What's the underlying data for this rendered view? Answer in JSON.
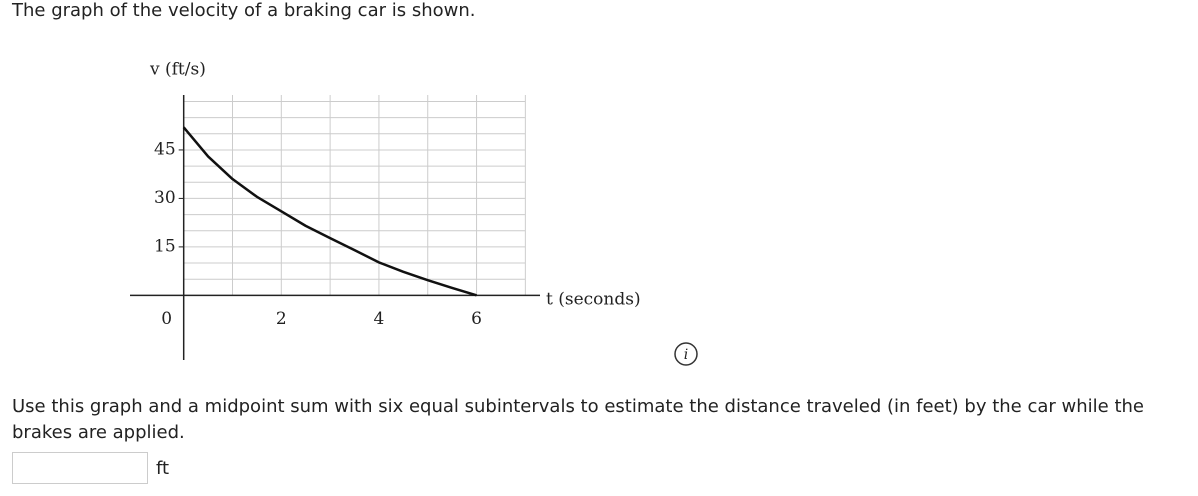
{
  "intro": "The graph of the velocity of a braking car is shown.",
  "question": "Use this graph and a midpoint sum with six equal subintervals to estimate the distance traveled (in feet) by the car while the brakes are applied.",
  "answer_unit": "ft",
  "chart_data": {
    "type": "line",
    "y_label": "v (ft/s)",
    "x_label": "t (seconds)",
    "x": [
      0,
      0.5,
      1,
      1.5,
      2,
      2.5,
      3,
      3.5,
      4,
      4.5,
      5,
      5.5,
      6
    ],
    "series": [
      {
        "color": "#111111",
        "values": [
          52,
          43,
          36,
          30.5,
          26,
          21.5,
          17.7,
          14,
          10.2,
          7.3,
          4.7,
          2.3,
          0
        ]
      }
    ],
    "xlim": [
      -1.1,
      7.3
    ],
    "ylim": [
      -20,
      62
    ],
    "xticks": [
      0,
      2,
      4,
      6
    ],
    "yticks": [
      15,
      30,
      45
    ],
    "grid": true,
    "minor_grid": {
      "x": 1,
      "y": 5
    },
    "grid_xlim": [
      0,
      7
    ],
    "grid_ylim": [
      0,
      62
    ]
  }
}
